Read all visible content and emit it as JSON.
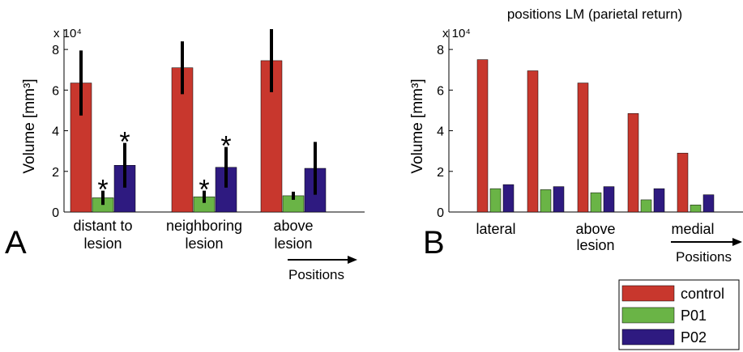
{
  "colors": {
    "control": "#c8372d",
    "P01": "#6ab446",
    "P02": "#2e1a80",
    "error_bar": "#000000"
  },
  "panel_labels": [
    "A",
    "B"
  ],
  "legend": [
    "control",
    "P01",
    "P02"
  ],
  "chart_data": [
    {
      "type": "bar",
      "panel": "A",
      "title": "",
      "xlabel": "",
      "ylabel": "Volume [mm³]",
      "y_multiplier": "x 10⁴",
      "ylim": [
        0,
        9
      ],
      "yticks": [
        0,
        2,
        4,
        6,
        8
      ],
      "categories": [
        [
          "distant to",
          "lesion"
        ],
        [
          "neighboring",
          "lesion"
        ],
        [
          "above",
          "lesion"
        ]
      ],
      "axis_arrow_label": "Positions",
      "series": [
        {
          "name": "control",
          "values": [
            6.35,
            7.1,
            7.45
          ],
          "error": [
            1.6,
            1.3,
            1.55
          ],
          "significant": [
            false,
            false,
            false
          ]
        },
        {
          "name": "P01",
          "values": [
            0.7,
            0.75,
            0.8
          ],
          "error": [
            0.35,
            0.3,
            0.2
          ],
          "significant": [
            true,
            true,
            false
          ]
        },
        {
          "name": "P02",
          "values": [
            2.3,
            2.2,
            2.15
          ],
          "error": [
            1.1,
            1.0,
            1.3
          ],
          "significant": [
            true,
            true,
            false
          ]
        }
      ],
      "significance_marker": "*"
    },
    {
      "type": "bar",
      "panel": "B",
      "title": "positions LM (parietal return)",
      "xlabel": "",
      "ylabel": "Volume [mm³]",
      "y_multiplier": "x 10⁴",
      "ylim": [
        0,
        9
      ],
      "yticks": [
        0,
        2,
        4,
        6,
        8
      ],
      "x_labels": [
        [
          "lateral"
        ],
        [
          "above",
          "lesion"
        ],
        [
          "medial"
        ]
      ],
      "axis_arrow_label": "Positions",
      "groups": 5,
      "series": [
        {
          "name": "control",
          "values": [
            7.5,
            6.95,
            6.35,
            4.85,
            2.9
          ]
        },
        {
          "name": "P01",
          "values": [
            1.15,
            1.1,
            0.95,
            0.6,
            0.35
          ]
        },
        {
          "name": "P02",
          "values": [
            1.35,
            1.25,
            1.25,
            1.15,
            0.85
          ]
        }
      ]
    }
  ]
}
